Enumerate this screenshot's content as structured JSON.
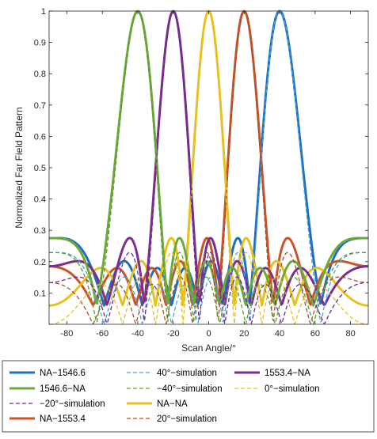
{
  "chart_data": {
    "type": "line",
    "xlabel": "Scan Angle/°",
    "ylabel": "Normolized Far Field Pattern",
    "xlim": [
      -90,
      90
    ],
    "ylim": [
      0,
      1
    ],
    "xticks": [
      -80,
      -60,
      -40,
      -20,
      0,
      20,
      40,
      60,
      80
    ],
    "yticks": [
      0.1,
      0.2,
      0.3,
      0.4,
      0.5,
      0.6,
      0.7,
      0.8,
      0.9,
      1
    ],
    "ytick_labels": [
      "0.1",
      "0.2",
      "0.3",
      "0.4",
      "0.5",
      "0.6",
      "0.7",
      "0.8",
      "0.9",
      "1"
    ],
    "grid": false,
    "legend_position": "bottom",
    "series": [
      {
        "name": "NA−1546.6",
        "steer": 40,
        "color": "#1f6fbf",
        "style": "solid"
      },
      {
        "name": "NA−1553.4",
        "steer": 20,
        "color": "#c8552a",
        "style": "solid"
      },
      {
        "name": "NA−NA",
        "steer": 0,
        "color": "#e8c020",
        "style": "solid"
      },
      {
        "name": "1553.4−NA",
        "steer": -20,
        "color": "#7a2e8f",
        "style": "solid"
      },
      {
        "name": "1546.6−NA",
        "steer": -40,
        "color": "#6fa83a",
        "style": "solid"
      },
      {
        "name": "40°−simulation",
        "steer": 40,
        "color": "#4da3e0",
        "style": "dashed"
      },
      {
        "name": "20°−simulation",
        "steer": 20,
        "color": "#a5502a",
        "style": "dashed"
      },
      {
        "name": "0°−simulation",
        "steer": 0,
        "color": "#e8c020",
        "style": "dashed"
      },
      {
        "name": "−20°−simulation",
        "steer": -20,
        "color": "#6a2d8a",
        "style": "dashed"
      },
      {
        "name": "−40°−simulation",
        "steer": -40,
        "color": "#5a9a30",
        "style": "dashed"
      }
    ],
    "legend_order": [
      0,
      4,
      8,
      1,
      5,
      9,
      2,
      6,
      3,
      7
    ]
  }
}
